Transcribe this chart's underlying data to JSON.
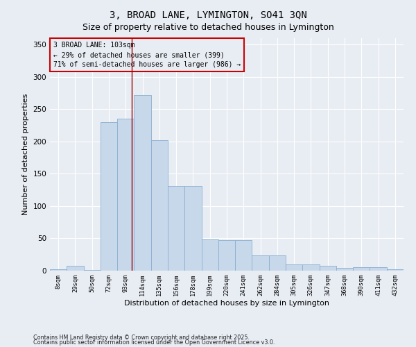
{
  "title": "3, BROAD LANE, LYMINGTON, SO41 3QN",
  "subtitle": "Size of property relative to detached houses in Lymington",
  "xlabel": "Distribution of detached houses by size in Lymington",
  "ylabel": "Number of detached properties",
  "footnote1": "Contains HM Land Registry data © Crown copyright and database right 2025.",
  "footnote2": "Contains public sector information licensed under the Open Government Licence v3.0.",
  "annotation_line1": "3 BROAD LANE: 103sqm",
  "annotation_line2": "← 29% of detached houses are smaller (399)",
  "annotation_line3": "71% of semi-detached houses are larger (986) →",
  "bar_color": "#c8d8eb",
  "bar_edge_color": "#8aaecf",
  "vline_color": "#990000",
  "bg_color": "#e8edf4",
  "grid_color": "#ffffff",
  "categories": [
    "8sqm",
    "29sqm",
    "50sqm",
    "72sqm",
    "93sqm",
    "114sqm",
    "135sqm",
    "156sqm",
    "178sqm",
    "199sqm",
    "220sqm",
    "241sqm",
    "262sqm",
    "284sqm",
    "305sqm",
    "326sqm",
    "347sqm",
    "368sqm",
    "390sqm",
    "411sqm",
    "432sqm"
  ],
  "values": [
    2,
    8,
    1,
    230,
    235,
    272,
    202,
    131,
    131,
    48,
    47,
    47,
    24,
    24,
    10,
    10,
    8,
    4,
    5,
    5,
    2
  ],
  "ylim": [
    0,
    360
  ],
  "yticks": [
    0,
    50,
    100,
    150,
    200,
    250,
    300,
    350
  ],
  "vline_x_index": 4.35,
  "title_fontsize": 10,
  "subtitle_fontsize": 9
}
